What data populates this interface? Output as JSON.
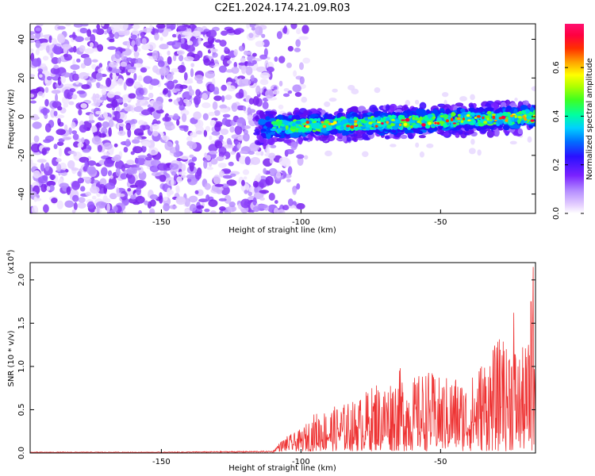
{
  "title": "C2E1.2024.174.21.09.R03",
  "chart_data": [
    {
      "type": "heatmap",
      "xlabel": "Height of straight line (km)",
      "ylabel": "Frequency (Hz)",
      "xlim": [
        -197,
        -16
      ],
      "ylim": [
        -50,
        48
      ],
      "x_ticks": [
        -150,
        -100,
        -50
      ],
      "y_ticks": [
        -40,
        -20,
        0,
        20,
        40
      ],
      "noise_region_x": [
        -197,
        -110
      ],
      "noise_region_y": [
        -50,
        48
      ],
      "signal_region_x": [
        -120,
        -16
      ],
      "signal_center_start_hz": -6,
      "signal_center_end_hz": 0,
      "signal_halfwidth_hz": 4,
      "colorbar": {
        "label": "Normalized spectral amplitude",
        "range": [
          0.0,
          0.78
        ],
        "ticks": [
          0.0,
          0.2,
          0.4,
          0.6
        ]
      }
    },
    {
      "type": "line",
      "xlabel": "Height of straight line (km)",
      "ylabel": "SNR (10 * v/v)",
      "y_multiplier_label": "(x10",
      "y_multiplier_exp": "4",
      "y_multiplier_close": ")",
      "xlim": [
        -197,
        -16
      ],
      "ylim": [
        0,
        2.2
      ],
      "x_ticks": [
        -150,
        -100,
        -50
      ],
      "y_ticks": [
        0.0,
        0.5,
        1.0,
        1.5,
        2.0
      ],
      "color": "#ee3333",
      "envelope": [
        {
          "x": -197,
          "y": 0.01
        },
        {
          "x": -150,
          "y": 0.01
        },
        {
          "x": -110,
          "y": 0.02
        },
        {
          "x": -106,
          "y": 0.16
        },
        {
          "x": -100,
          "y": 0.25
        },
        {
          "x": -95,
          "y": 0.45
        },
        {
          "x": -90,
          "y": 0.5
        },
        {
          "x": -85,
          "y": 0.55
        },
        {
          "x": -80,
          "y": 0.6
        },
        {
          "x": -75,
          "y": 0.75
        },
        {
          "x": -70,
          "y": 0.8
        },
        {
          "x": -65,
          "y": 0.95
        },
        {
          "x": -60,
          "y": 0.85
        },
        {
          "x": -55,
          "y": 0.95
        },
        {
          "x": -50,
          "y": 0.85
        },
        {
          "x": -45,
          "y": 0.9
        },
        {
          "x": -40,
          "y": 0.8
        },
        {
          "x": -35,
          "y": 1.1
        },
        {
          "x": -30,
          "y": 1.25
        },
        {
          "x": -26,
          "y": 1.5
        },
        {
          "x": -22,
          "y": 1.15
        },
        {
          "x": -18,
          "y": 1.3
        },
        {
          "x": -16,
          "y": 2.15
        }
      ],
      "spikes": [
        {
          "x": -16.8,
          "y": 2.15
        },
        {
          "x": -17.6,
          "y": 1.75
        },
        {
          "x": -23.8,
          "y": 1.62
        },
        {
          "x": -26.5,
          "y": 1.2
        },
        {
          "x": -28.0,
          "y": 1.13
        },
        {
          "x": -64.5,
          "y": 0.98
        },
        {
          "x": -73.0,
          "y": 0.78
        }
      ]
    }
  ]
}
